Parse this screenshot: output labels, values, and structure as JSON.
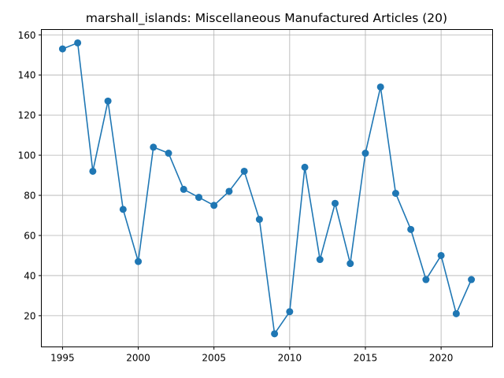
{
  "chart_data": {
    "type": "line",
    "title": "marshall_islands: Miscellaneous Manufactured Articles (20)",
    "xlabel": "",
    "ylabel": "",
    "xlim": [
      1993.6,
      2023.4
    ],
    "ylim": [
      4.45,
      162.65
    ],
    "xticks": [
      1995,
      2000,
      2005,
      2010,
      2015,
      2020
    ],
    "yticks": [
      20,
      40,
      60,
      80,
      100,
      120,
      140,
      160
    ],
    "grid": true,
    "marker": "circle",
    "color": "#1f77b4",
    "series": [
      {
        "x": [
          1995,
          1996,
          1997,
          1998,
          1999,
          2000,
          2001,
          2002,
          2003,
          2004,
          2005,
          2006,
          2007,
          2008,
          2009,
          2010,
          2011,
          2012,
          2013,
          2014,
          2015,
          2016,
          2017,
          2018,
          2019,
          2020,
          2021,
          2022
        ],
        "values": [
          153,
          156,
          92,
          127,
          73,
          47,
          104,
          101,
          83,
          79,
          75,
          82,
          92,
          68,
          11,
          22,
          94,
          48,
          76,
          46,
          101,
          134,
          81,
          63,
          38,
          50,
          21,
          38
        ]
      }
    ]
  }
}
